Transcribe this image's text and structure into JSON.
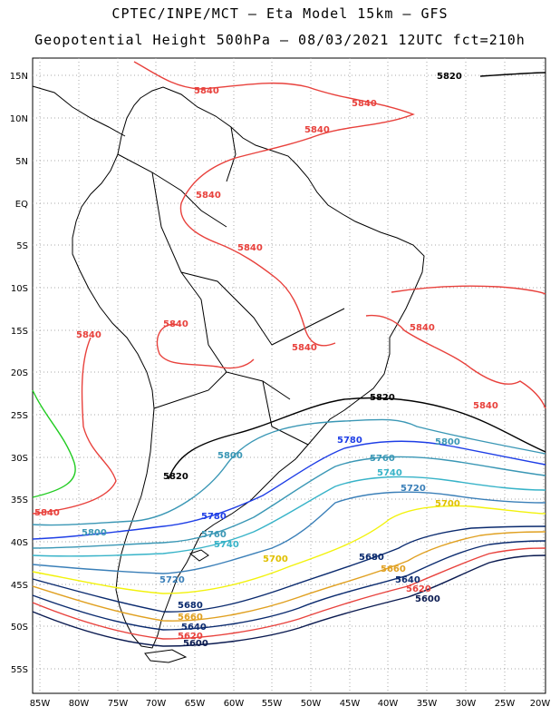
{
  "title_line1": "CPTEC/INPE/MCT –  Eta Model 15km – GFS",
  "title_line2": "Geopotential Height 500hPa – 08/03/2021 12UTC fct=210h",
  "lat_labels": [
    "15N",
    "10N",
    "5N",
    "EQ",
    "5S",
    "10S",
    "15S",
    "20S",
    "25S",
    "30S",
    "35S",
    "40S",
    "45S",
    "50S",
    "55S"
  ],
  "lon_labels": [
    "85W",
    "80W",
    "75W",
    "70W",
    "65W",
    "60W",
    "55W",
    "50W",
    "45W",
    "40W",
    "35W",
    "30W",
    "25W",
    "20W"
  ],
  "contour_colors": {
    "5840": "#e8413c",
    "5820": "#000000",
    "5800": "#3a97b5",
    "5780": "#1e3ee6",
    "5760": "#3a97b5",
    "5740": "#37b3c8",
    "5720": "#3a7fb8",
    "5700": "#f2f20c",
    "5680": "#0a2a6e",
    "5660": "#e0a020",
    "5640": "#0a2a6e",
    "5620": "#e8413c",
    "5600": "#0a1a50",
    "5860": "#22cc22"
  },
  "contour_labels": [
    {
      "text": "5820",
      "id": "a"
    },
    {
      "text": "5840",
      "id": "b"
    },
    {
      "text": "5840",
      "id": "c"
    },
    {
      "text": "5840",
      "id": "d"
    },
    {
      "text": "5840",
      "id": "e"
    },
    {
      "text": "5840",
      "id": "f"
    },
    {
      "text": "5840",
      "id": "g"
    },
    {
      "text": "5840",
      "id": "h"
    },
    {
      "text": "5840",
      "id": "i"
    },
    {
      "text": "5840",
      "id": "j"
    },
    {
      "text": "5840",
      "id": "k"
    },
    {
      "text": "5840",
      "id": "l"
    },
    {
      "text": "5820",
      "id": "m"
    },
    {
      "text": "5820",
      "id": "n"
    },
    {
      "text": "5800",
      "id": "o"
    },
    {
      "text": "5780",
      "id": "p"
    },
    {
      "text": "5800",
      "id": "q"
    },
    {
      "text": "5760",
      "id": "r"
    },
    {
      "text": "5740",
      "id": "s"
    },
    {
      "text": "5720",
      "id": "t"
    },
    {
      "text": "5700",
      "id": "u"
    },
    {
      "text": "5800",
      "id": "v"
    },
    {
      "text": "5780",
      "id": "w"
    },
    {
      "text": "5760",
      "id": "x"
    },
    {
      "text": "5740",
      "id": "y"
    },
    {
      "text": "5720",
      "id": "z"
    },
    {
      "text": "5700",
      "id": "aa"
    },
    {
      "text": "5680",
      "id": "ab"
    },
    {
      "text": "5660",
      "id": "ac"
    },
    {
      "text": "5640",
      "id": "ad"
    },
    {
      "text": "5620",
      "id": "ae"
    },
    {
      "text": "5600",
      "id": "af"
    },
    {
      "text": "5680",
      "id": "ag"
    },
    {
      "text": "5660",
      "id": "ah"
    },
    {
      "text": "5640",
      "id": "ai"
    },
    {
      "text": "5620",
      "id": "aj"
    },
    {
      "text": "5600",
      "id": "ak"
    }
  ]
}
